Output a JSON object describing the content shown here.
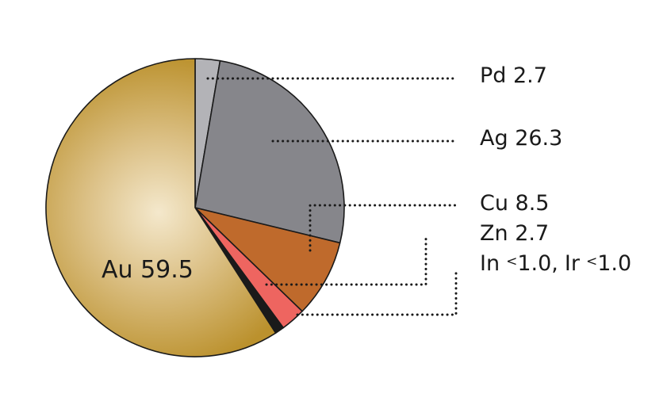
{
  "chart_data": {
    "type": "pie",
    "slices": [
      {
        "name": "Au",
        "value": 59.5,
        "label": "Au 59.5",
        "color": "#c39a38"
      },
      {
        "name": "Pd",
        "value": 2.7,
        "label": "Pd 2.7",
        "color": "#b3b3b7"
      },
      {
        "name": "Ag",
        "value": 26.3,
        "label": "Ag 26.3",
        "color": "#86868b"
      },
      {
        "name": "Cu",
        "value": 8.5,
        "label": "Cu 8.5",
        "color": "#bf6a2c"
      },
      {
        "name": "Zn",
        "value": 2.7,
        "label": "Zn 2.7",
        "color": "#ee6560"
      },
      {
        "name": "In, Ir",
        "value": 1.0,
        "color": "#1a1a1a"
      }
    ],
    "labels": {
      "pd": "Pd 2.7",
      "ag": "Ag 26.3",
      "cu": "Cu 8.5",
      "zn": "Zn 2.7",
      "in_symbol": "In",
      "ir_symbol": "Ir",
      "lt": "<",
      "in_value": "1.0",
      "separator": ",",
      "ir_value": "1.0",
      "au": "Au 59.5"
    }
  }
}
